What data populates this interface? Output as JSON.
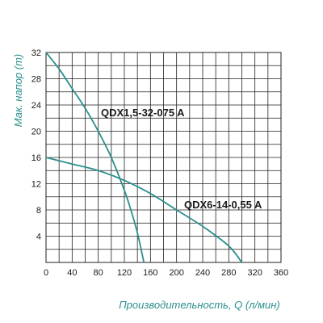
{
  "chart_data": {
    "type": "line",
    "title": "",
    "xlabel": "Производительность, Q (л/мин)",
    "ylabel": "Мак. напор (m)",
    "xlim": [
      0,
      360
    ],
    "ylim": [
      0,
      32
    ],
    "x_ticks": [
      0,
      40,
      80,
      120,
      160,
      200,
      240,
      280,
      320,
      360
    ],
    "y_ticks": [
      4,
      8,
      12,
      16,
      20,
      24,
      28,
      32
    ],
    "x_tick_labels": [
      "0",
      "40",
      "80",
      "120",
      "160",
      "200",
      "240",
      "280",
      "320",
      "360"
    ],
    "y_tick_labels": [
      "4",
      "8",
      "12",
      "16",
      "20",
      "24",
      "28",
      "32"
    ],
    "grid": true,
    "series_color": "#2a8f8c",
    "series": [
      {
        "name": "QDX1,5-32-075 A",
        "x": [
          0,
          20,
          40,
          60,
          80,
          100,
          120,
          130,
          140,
          150
        ],
        "y": [
          32,
          29.5,
          26.5,
          23.5,
          20,
          16,
          11,
          8,
          4.5,
          0
        ]
      },
      {
        "name": "QDX6-14-0,55 A",
        "x": [
          0,
          40,
          80,
          120,
          160,
          200,
          240,
          280,
          300
        ],
        "y": [
          16,
          15,
          14,
          12.5,
          10.5,
          8,
          5.5,
          2.5,
          0
        ]
      }
    ]
  }
}
